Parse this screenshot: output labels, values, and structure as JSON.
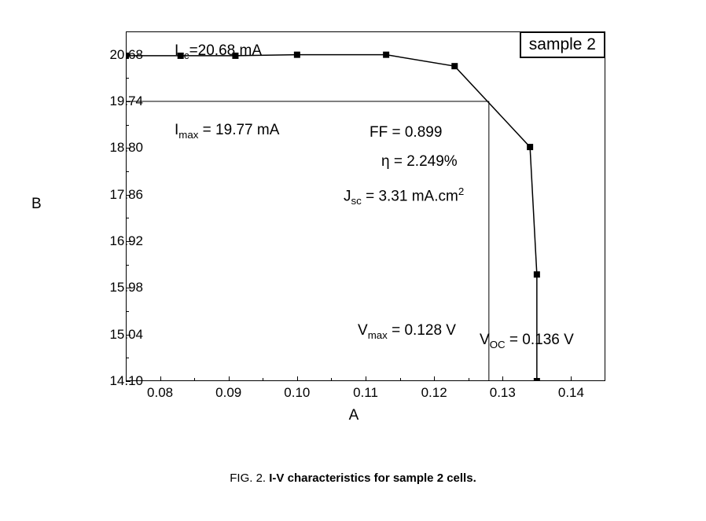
{
  "chart": {
    "type": "line",
    "xlabel": "A",
    "ylabel": "B",
    "xlim": [
      0.075,
      0.145
    ],
    "ylim": [
      14.1,
      21.15
    ],
    "xtick_major": [
      0.08,
      0.09,
      0.1,
      0.11,
      0.12,
      0.13,
      0.14
    ],
    "xtick_minor": [
      0.085,
      0.095,
      0.105,
      0.115,
      0.125,
      0.135
    ],
    "ytick_major": [
      14.1,
      15.04,
      15.98,
      16.92,
      17.86,
      18.8,
      19.74,
      20.68
    ],
    "ytick_minor": [
      14.57,
      15.51,
      16.45,
      17.39,
      18.33,
      19.27,
      20.21
    ],
    "xtick_labels": [
      "0.08",
      "0.09",
      "0.10",
      "0.11",
      "0.12",
      "0.13",
      "0.14"
    ],
    "ytick_labels": [
      "14.10",
      "15.04",
      "15.98",
      "16.92",
      "17.86",
      "18.80",
      "19.74",
      "20.68"
    ],
    "series": {
      "x": [
        0.075,
        0.083,
        0.091,
        0.1,
        0.113,
        0.123,
        0.134,
        0.135,
        0.135
      ],
      "y": [
        20.66,
        20.66,
        20.66,
        20.68,
        20.68,
        20.45,
        18.82,
        16.25,
        14.1
      ],
      "line_color": "#000000",
      "line_width": 1.5,
      "marker": "square",
      "marker_size": 8,
      "marker_color": "#000000"
    },
    "guide_lines": {
      "h_y": 19.74,
      "v_x": 0.128,
      "color": "#000000",
      "width": 1
    },
    "background_color": "#ffffff",
    "border_color": "#000000",
    "label_fontsize": 19,
    "tick_fontsize": 17,
    "annotation_fontsize": 19,
    "sample_label": "sample 2",
    "annotations": {
      "isc_html": "I<sub>sc</sub>=20.68 mA",
      "imax_html": "I<sub>max</sub> = 19.77 mA",
      "ff_html": "FF = 0.899",
      "eta_html": "η = 2.249%",
      "jsc_html": "J<sub>sc</sub> = 3.31 mA.cm<sup>2</sup>",
      "vmax_html": "V<sub>max</sub> = 0.128 V",
      "voc_html": "V<sub>OC</sub> = 0.136 V"
    }
  },
  "caption": {
    "label": "FIG. 2.",
    "text": "I-V characteristics for sample 2 cells."
  }
}
